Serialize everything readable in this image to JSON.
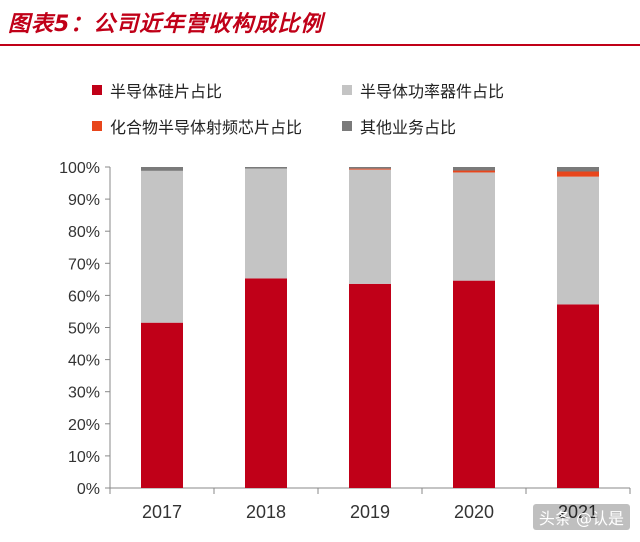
{
  "title": "图表5：公司近年营收构成比例",
  "colors": {
    "accent": "#c00018",
    "series": [
      "#c00018",
      "#c4c4c4",
      "#e8461c",
      "#7a7a7a"
    ]
  },
  "watermark": "头条 @认是",
  "chart_data": {
    "type": "bar",
    "stacked": true,
    "categories": [
      "2017",
      "2018",
      "2019",
      "2020",
      "2021"
    ],
    "series": [
      {
        "name": "半导体硅片占比",
        "values": [
          51.5,
          65.3,
          63.6,
          64.6,
          57.2
        ]
      },
      {
        "name": "半导体功率器件占比",
        "values": [
          47.3,
          34.2,
          35.6,
          33.7,
          39.8
        ]
      },
      {
        "name": "化合物半导体射频芯片占比",
        "values": [
          0,
          0,
          0.3,
          0.6,
          1.6
        ]
      },
      {
        "name": "其他业务占比",
        "values": [
          1.2,
          0.5,
          0.5,
          1.1,
          1.4
        ]
      }
    ],
    "y_ticks": [
      "0%",
      "10%",
      "20%",
      "30%",
      "40%",
      "50%",
      "60%",
      "70%",
      "80%",
      "90%",
      "100%"
    ],
    "ylim": [
      0,
      100
    ],
    "xlabel": "",
    "ylabel": "",
    "legend_position": "top"
  }
}
